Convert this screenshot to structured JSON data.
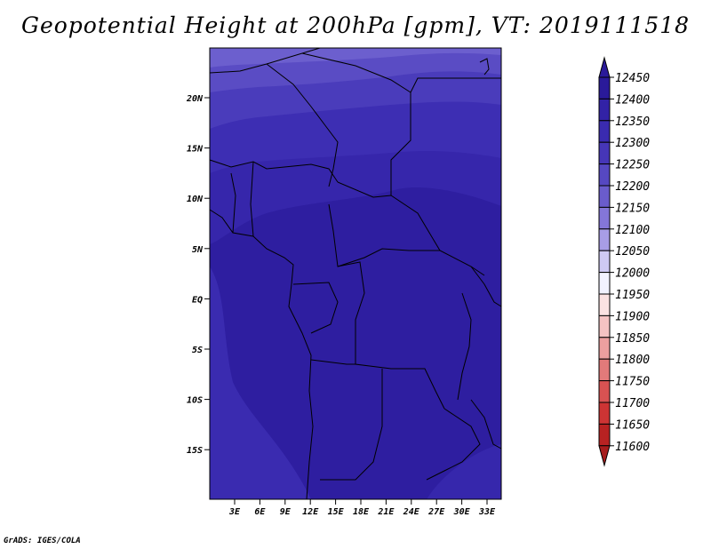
{
  "title": "Geopotential Height at 200hPa [gpm], VT: 2019111518",
  "credit": "GrADS: IGES/COLA",
  "map": {
    "lat_ticks": [
      "20N",
      "15N",
      "10N",
      "5N",
      "EQ",
      "5S",
      "10S",
      "15S"
    ],
    "lon_ticks": [
      "3E",
      "6E",
      "9E",
      "12E",
      "15E",
      "18E",
      "21E",
      "24E",
      "27E",
      "30E",
      "33E"
    ]
  },
  "colorbar": {
    "levels": [
      "12450",
      "12400",
      "12350",
      "12300",
      "12250",
      "12200",
      "12150",
      "12100",
      "12050",
      "12000",
      "11950",
      "11900",
      "11850",
      "11800",
      "11750",
      "11700",
      "11650",
      "11600"
    ],
    "colors": [
      "#2a1a9a",
      "#3222a6",
      "#3a2bb0",
      "#4636b8",
      "#5648c2",
      "#6a5ccc",
      "#8476d8",
      "#a89de6",
      "#cfcaf3",
      "#f2f2ff",
      "#fbe2e2",
      "#f5c3c3",
      "#ec9f9f",
      "#e27a7a",
      "#d85252",
      "#cd3434",
      "#b82222"
    ],
    "top_arrow_color": "#2a1a9a",
    "bottom_arrow_color": "#a61c1c"
  }
}
